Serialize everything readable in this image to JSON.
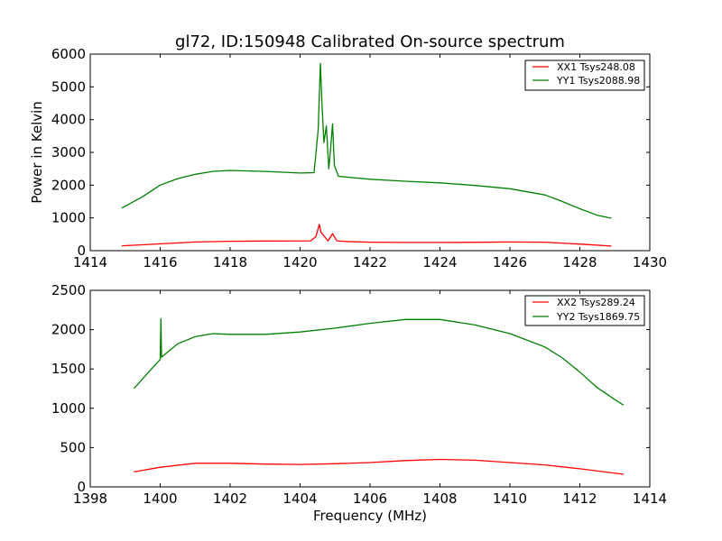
{
  "chart_data": [
    {
      "type": "line",
      "title": "gl72, ID:150948 Calibrated On-source spectrum",
      "xlabel": "",
      "ylabel": "Power in Kelvin",
      "xlim": [
        1414,
        1430
      ],
      "ylim": [
        0,
        6000
      ],
      "xticks": [
        1414,
        1416,
        1418,
        1420,
        1422,
        1424,
        1426,
        1428,
        1430
      ],
      "yticks": [
        0,
        1000,
        2000,
        3000,
        4000,
        5000,
        6000
      ],
      "legend_position": "top-right",
      "series": [
        {
          "name": "XX1 Tsys248.08",
          "color": "#ff0000",
          "x": [
            1414.9,
            1415.5,
            1416.2,
            1417,
            1418,
            1419,
            1420.3,
            1420.45,
            1420.55,
            1420.6,
            1420.7,
            1420.8,
            1420.93,
            1421.05,
            1421.3,
            1422,
            1423,
            1424,
            1425,
            1426,
            1427,
            1428,
            1428.9
          ],
          "y": [
            150,
            180,
            220,
            265,
            285,
            295,
            300,
            420,
            800,
            560,
            430,
            300,
            520,
            300,
            280,
            260,
            250,
            250,
            255,
            265,
            260,
            200,
            140
          ]
        },
        {
          "name": "YY1 Tsys2088.98",
          "color": "#008000",
          "x": [
            1414.9,
            1415.5,
            1416,
            1416.5,
            1417,
            1417.5,
            1418,
            1419,
            1420,
            1420.4,
            1420.52,
            1420.58,
            1420.63,
            1420.68,
            1420.75,
            1420.82,
            1420.88,
            1420.93,
            1420.98,
            1421.1,
            1421.5,
            1422,
            1423,
            1424,
            1425,
            1426,
            1427,
            1427.5,
            1428,
            1428.5,
            1428.9
          ],
          "y": [
            1300,
            1650,
            2000,
            2200,
            2330,
            2420,
            2450,
            2420,
            2370,
            2380,
            3700,
            5720,
            4400,
            3300,
            3800,
            2500,
            3200,
            3870,
            2600,
            2270,
            2230,
            2180,
            2120,
            2070,
            1990,
            1890,
            1700,
            1500,
            1280,
            1080,
            990
          ]
        }
      ]
    },
    {
      "type": "line",
      "title": "",
      "xlabel": "Frequency (MHz)",
      "ylabel": "",
      "xlim": [
        1398,
        1414
      ],
      "ylim": [
        0,
        2500
      ],
      "xticks": [
        1398,
        1400,
        1402,
        1404,
        1406,
        1408,
        1410,
        1412,
        1414
      ],
      "yticks": [
        0,
        500,
        1000,
        1500,
        2000,
        2500
      ],
      "legend_position": "top-right",
      "series": [
        {
          "name": "XX2 Tsys289.24",
          "color": "#ff0000",
          "x": [
            1399.25,
            1400,
            1401,
            1402,
            1403,
            1404,
            1405,
            1406,
            1407,
            1408,
            1409,
            1410,
            1411,
            1412,
            1413.25
          ],
          "y": [
            190,
            250,
            300,
            300,
            290,
            285,
            295,
            310,
            335,
            350,
            340,
            310,
            280,
            230,
            160
          ]
        },
        {
          "name": "YY2 Tsys1869.75",
          "color": "#008000",
          "x": [
            1399.25,
            1399.75,
            1400,
            1400.02,
            1400.04,
            1400.5,
            1401,
            1401.5,
            1402,
            1403,
            1404,
            1405,
            1406,
            1407,
            1408,
            1409,
            1410,
            1411,
            1411.5,
            1412,
            1412.5,
            1413,
            1413.25
          ],
          "y": [
            1250,
            1500,
            1620,
            2140,
            1650,
            1820,
            1910,
            1950,
            1940,
            1940,
            1970,
            2020,
            2080,
            2130,
            2130,
            2060,
            1950,
            1780,
            1640,
            1460,
            1260,
            1110,
            1040
          ]
        }
      ]
    }
  ]
}
